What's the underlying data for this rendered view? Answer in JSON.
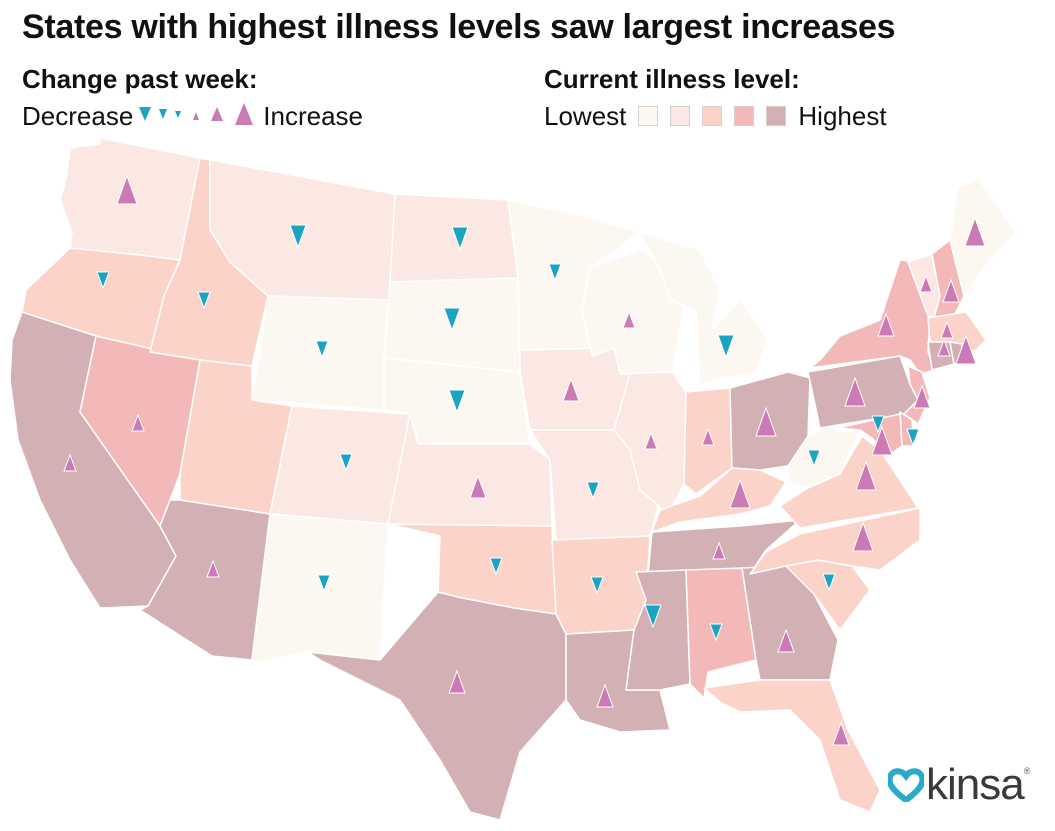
{
  "title": "States with highest illness levels saw largest increases",
  "legend_change": {
    "heading": "Change past week:",
    "low_label": "Decrease",
    "high_label": "Increase"
  },
  "legend_level": {
    "heading": "Current illness level:",
    "low_label": "Lowest",
    "high_label": "Highest"
  },
  "level_colors": [
    "#fdf7f2",
    "#fce8e2",
    "#fbd3c8",
    "#f3b9b8",
    "#d3b0b3"
  ],
  "decrease_color": "#1aa4c2",
  "increase_color": "#cc7ab5",
  "border_color": "#ffffff",
  "logo": {
    "text": "kinsa",
    "mark": "®",
    "heart_color": "#2aa9c8"
  },
  "states": [
    {
      "abbr": "WA",
      "level": 2,
      "change": 3
    },
    {
      "abbr": "OR",
      "level": 3,
      "change": -1
    },
    {
      "abbr": "CA",
      "level": 5,
      "change": 1
    },
    {
      "abbr": "NV",
      "level": 4,
      "change": 1
    },
    {
      "abbr": "ID",
      "level": 3,
      "change": -1
    },
    {
      "abbr": "MT",
      "level": 2,
      "change": -2
    },
    {
      "abbr": "WY",
      "level": 1,
      "change": -1
    },
    {
      "abbr": "UT",
      "level": 3,
      "change": 0
    },
    {
      "abbr": "AZ",
      "level": 5,
      "change": 1
    },
    {
      "abbr": "CO",
      "level": 2,
      "change": -1
    },
    {
      "abbr": "NM",
      "level": 1,
      "change": -1
    },
    {
      "abbr": "ND",
      "level": 2,
      "change": -2
    },
    {
      "abbr": "SD",
      "level": 1,
      "change": -2
    },
    {
      "abbr": "NE",
      "level": 1,
      "change": -2
    },
    {
      "abbr": "KS",
      "level": 2,
      "change": 2
    },
    {
      "abbr": "OK",
      "level": 3,
      "change": -1
    },
    {
      "abbr": "TX",
      "level": 5,
      "change": 2
    },
    {
      "abbr": "MN",
      "level": 1,
      "change": -1
    },
    {
      "abbr": "IA",
      "level": 2,
      "change": 2
    },
    {
      "abbr": "MO",
      "level": 2,
      "change": -1
    },
    {
      "abbr": "AR",
      "level": 3,
      "change": -1
    },
    {
      "abbr": "LA",
      "level": 5,
      "change": 2
    },
    {
      "abbr": "WI",
      "level": 1,
      "change": 1
    },
    {
      "abbr": "IL",
      "level": 2,
      "change": 1
    },
    {
      "abbr": "MI",
      "level": 1,
      "change": -2
    },
    {
      "abbr": "IN",
      "level": 3,
      "change": 1
    },
    {
      "abbr": "OH",
      "level": 5,
      "change": 3
    },
    {
      "abbr": "KY",
      "level": 3,
      "change": 3
    },
    {
      "abbr": "TN",
      "level": 5,
      "change": 1
    },
    {
      "abbr": "MS",
      "level": 5,
      "change": -2
    },
    {
      "abbr": "AL",
      "level": 4,
      "change": -1
    },
    {
      "abbr": "GA",
      "level": 5,
      "change": 2
    },
    {
      "abbr": "FL",
      "level": 3,
      "change": 2
    },
    {
      "abbr": "SC",
      "level": 3,
      "change": -1
    },
    {
      "abbr": "NC",
      "level": 3,
      "change": 3
    },
    {
      "abbr": "VA",
      "level": 3,
      "change": 3
    },
    {
      "abbr": "WV",
      "level": 1,
      "change": -1
    },
    {
      "abbr": "PA",
      "level": 5,
      "change": 3
    },
    {
      "abbr": "NY",
      "level": 4,
      "change": 2
    },
    {
      "abbr": "VT",
      "level": 2,
      "change": 1
    },
    {
      "abbr": "NH",
      "level": 4,
      "change": 2
    },
    {
      "abbr": "ME",
      "level": 1,
      "change": 3
    },
    {
      "abbr": "MA",
      "level": 3,
      "change": 3
    },
    {
      "abbr": "CT",
      "level": 5,
      "change": 1
    },
    {
      "abbr": "RI",
      "level": 5,
      "change": 1
    },
    {
      "abbr": "NJ",
      "level": 4,
      "change": 2
    },
    {
      "abbr": "DE",
      "level": 4,
      "change": -1
    },
    {
      "abbr": "MD",
      "level": 4,
      "change": -1
    }
  ]
}
